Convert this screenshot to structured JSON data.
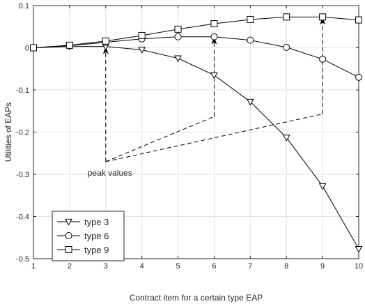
{
  "chart_data": {
    "type": "line",
    "title": "",
    "xlabel": "Contract item for a certain type EAP",
    "ylabel": "Utilities of EAPs",
    "xlim": [
      1,
      10
    ],
    "ylim": [
      -0.5,
      0.1
    ],
    "x": [
      1,
      2,
      3,
      4,
      5,
      6,
      7,
      8,
      9,
      10
    ],
    "xticks": [
      "1",
      "2",
      "3",
      "4",
      "5",
      "6",
      "7",
      "8",
      "9",
      "10"
    ],
    "yticks": [
      0.1,
      0,
      -0.1,
      -0.2,
      -0.3,
      -0.4,
      -0.5
    ],
    "ytick_labels": [
      "0.1",
      "0",
      "-0.1",
      "-0.2",
      "-0.3",
      "-0.4",
      "-0.5"
    ],
    "grid": true,
    "legend_position": "bottom-left",
    "series": [
      {
        "name": "type 3",
        "marker": "triangle-down",
        "values": [
          0,
          0.003,
          0.003,
          -0.005,
          -0.025,
          -0.065,
          -0.128,
          -0.213,
          -0.328,
          -0.477
        ]
      },
      {
        "name": "type 6",
        "marker": "circle",
        "values": [
          0,
          0.005,
          0.013,
          0.021,
          0.026,
          0.026,
          0.018,
          0.001,
          -0.027,
          -0.07
        ]
      },
      {
        "name": "type 9",
        "marker": "square",
        "values": [
          0,
          0.006,
          0.016,
          0.029,
          0.044,
          0.057,
          0.067,
          0.073,
          0.073,
          0.066
        ]
      }
    ],
    "annotation": {
      "text": "peak values",
      "targets": [
        {
          "x": 3,
          "y": 0.003
        },
        {
          "x": 6,
          "y": 0.026
        },
        {
          "x": 9,
          "y": 0.073
        }
      ],
      "elbows": [
        {
          "x": 3,
          "y": -0.27
        },
        {
          "x": 6,
          "y": -0.163
        },
        {
          "x": 9,
          "y": -0.157
        }
      ]
    },
    "line_color": "#000000"
  }
}
